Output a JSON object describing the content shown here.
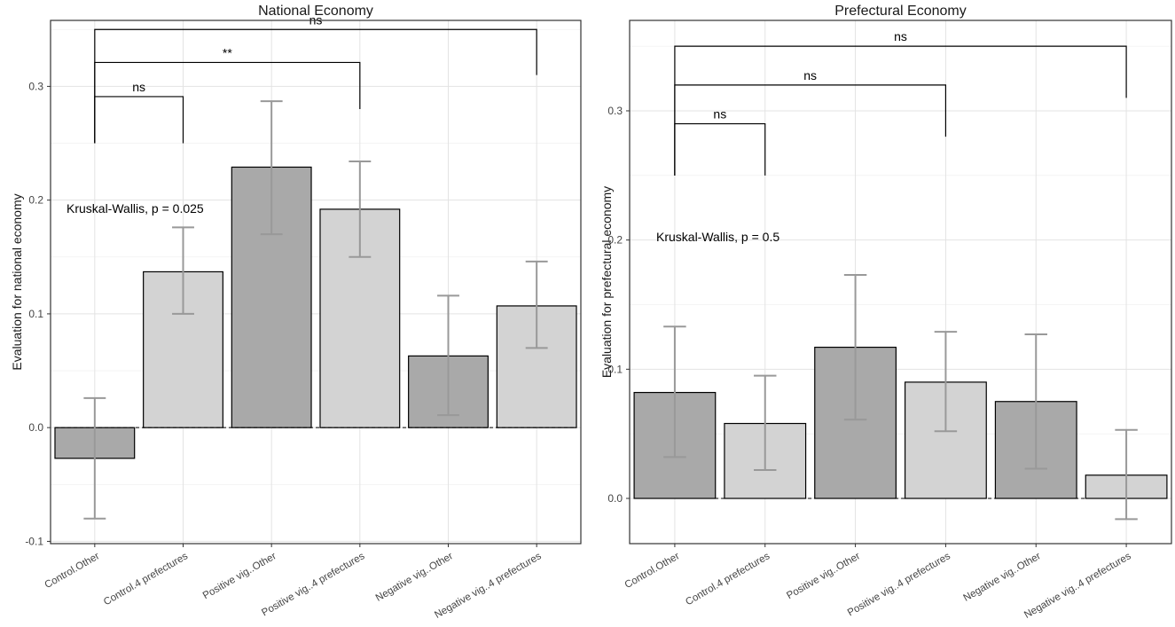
{
  "chart_data": [
    {
      "type": "bar",
      "title": "National Economy",
      "ylabel": "Evaluation for national economy",
      "xlabel": "",
      "ylim": [
        -0.102,
        0.358
      ],
      "yticks": [
        "-0.1",
        "0.0",
        "0.1",
        "0.2",
        "0.3"
      ],
      "ytick_values": [
        -0.1,
        0.0,
        0.1,
        0.2,
        0.3
      ],
      "categories": [
        "Control.Other",
        "Control.4 prefectures",
        "Positive vig..Other",
        "Positive vig..4 prefectures",
        "Negative vig..Other",
        "Negative vig..4 prefectures"
      ],
      "values": [
        -0.027,
        0.137,
        0.229,
        0.192,
        0.063,
        0.107
      ],
      "error_low": [
        -0.08,
        0.1,
        0.17,
        0.15,
        0.011,
        0.07
      ],
      "error_high": [
        0.026,
        0.176,
        0.287,
        0.234,
        0.116,
        0.146
      ],
      "bar_colors": [
        "#a9a9a9",
        "#d3d3d3",
        "#a9a9a9",
        "#d3d3d3",
        "#a9a9a9",
        "#d3d3d3"
      ],
      "error_color": "#999999",
      "annotation": "Kruskal-Wallis, p = 0.025",
      "comparisons": [
        {
          "from": 0,
          "to": 1,
          "label": "ns",
          "y": 0.291,
          "from_start": 0.25,
          "to_end": 0.25
        },
        {
          "from": 0,
          "to": 3,
          "label": "**",
          "y": 0.321,
          "from_start": 0.25,
          "to_end": 0.28
        },
        {
          "from": 0,
          "to": 5,
          "label": "ns",
          "y": 0.35,
          "from_start": 0.25,
          "to_end": 0.31
        }
      ]
    },
    {
      "type": "bar",
      "title": "Prefectural Economy",
      "ylabel": "Evaluation for prefectural economy",
      "xlabel": "",
      "ylim": [
        -0.035,
        0.37
      ],
      "yticks": [
        "0.0",
        "0.1",
        "0.2",
        "0.3"
      ],
      "ytick_values": [
        0.0,
        0.1,
        0.2,
        0.3
      ],
      "categories": [
        "Control.Other",
        "Control.4 prefectures",
        "Positive vig..Other",
        "Positive vig..4 prefectures",
        "Negative vig..Other",
        "Negative vig..4 prefectures"
      ],
      "values": [
        0.082,
        0.058,
        0.117,
        0.09,
        0.075,
        0.018
      ],
      "error_low": [
        0.032,
        0.022,
        0.061,
        0.052,
        0.023,
        -0.016
      ],
      "error_high": [
        0.133,
        0.095,
        0.173,
        0.129,
        0.127,
        0.053
      ],
      "bar_colors": [
        "#a9a9a9",
        "#d3d3d3",
        "#a9a9a9",
        "#d3d3d3",
        "#a9a9a9",
        "#d3d3d3"
      ],
      "error_color": "#999999",
      "annotation": "Kruskal-Wallis, p = 0.5",
      "comparisons": [
        {
          "from": 0,
          "to": 1,
          "label": "ns",
          "y": 0.29,
          "from_start": 0.25,
          "to_end": 0.25
        },
        {
          "from": 0,
          "to": 3,
          "label": "ns",
          "y": 0.32,
          "from_start": 0.25,
          "to_end": 0.28
        },
        {
          "from": 0,
          "to": 5,
          "label": "ns",
          "y": 0.35,
          "from_start": 0.25,
          "to_end": 0.31
        }
      ]
    }
  ]
}
